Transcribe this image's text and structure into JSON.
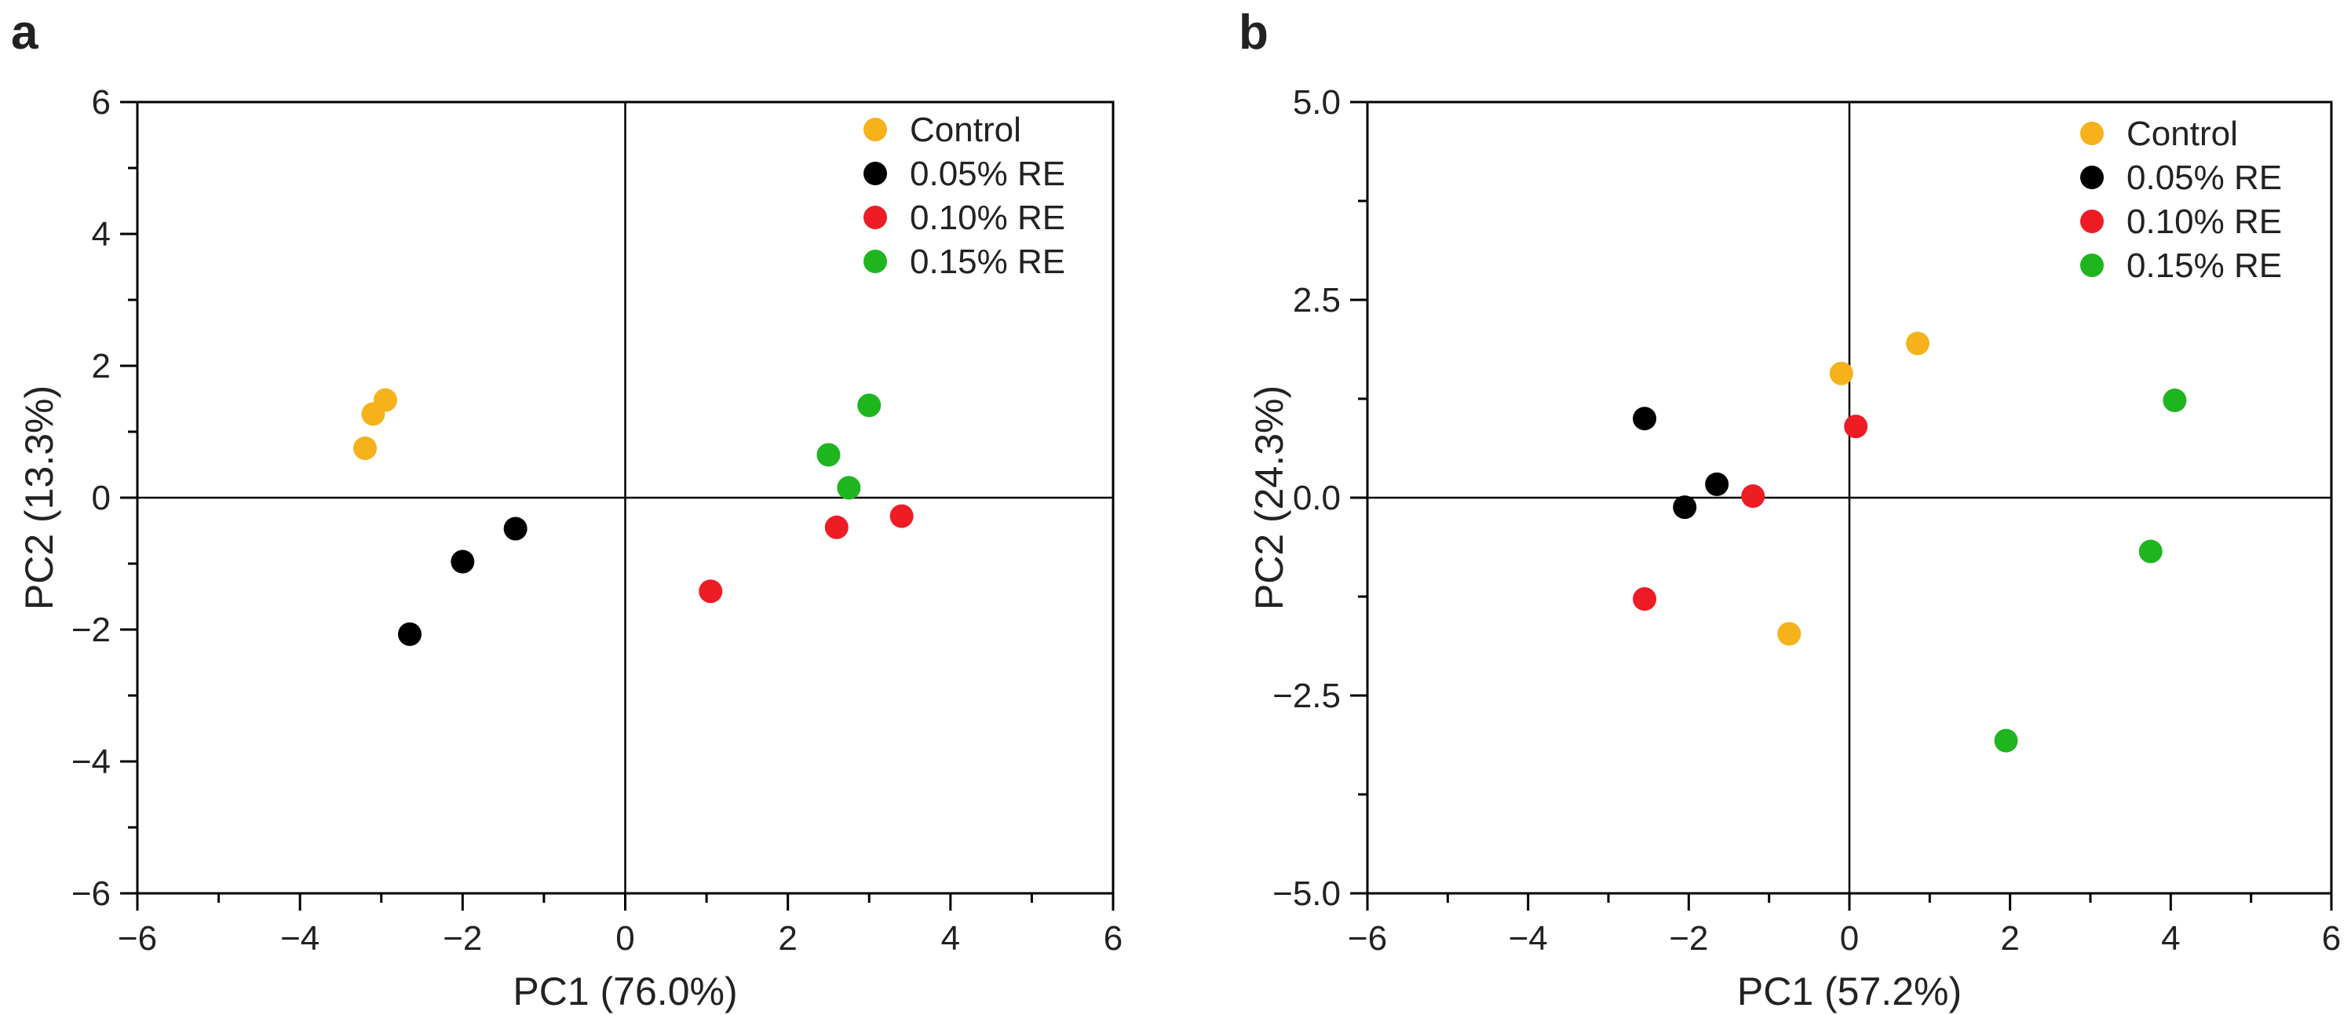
{
  "chart_data": [
    {
      "panel": "a",
      "type": "scatter",
      "xlabel": "PC1 (76.0%)",
      "ylabel": "PC2 (13.3%)",
      "xlim": [
        -6,
        6
      ],
      "ylim": [
        -6,
        6
      ],
      "xticks": [
        -6,
        -4,
        -2,
        0,
        2,
        4,
        6
      ],
      "yticks": [
        -6,
        -4,
        -2,
        0,
        2,
        4,
        6
      ],
      "x_tick_labels": [
        "−6",
        "−4",
        "−2",
        "0",
        "2",
        "4",
        "6"
      ],
      "y_tick_labels": [
        "−6",
        "−4",
        "−2",
        "0",
        "2",
        "4",
        "6"
      ],
      "legend_position": "top-right",
      "series": [
        {
          "name": "Control",
          "color": "#F5B21B",
          "points": [
            [
              -3.2,
              0.75
            ],
            [
              -3.1,
              1.27
            ],
            [
              -2.95,
              1.48
            ]
          ]
        },
        {
          "name": "0.05% RE",
          "color": "#000000",
          "points": [
            [
              -2.65,
              -2.07
            ],
            [
              -2.0,
              -0.97
            ],
            [
              -1.35,
              -0.47
            ]
          ]
        },
        {
          "name": "0.10% RE",
          "color": "#EE1C24",
          "points": [
            [
              1.05,
              -1.42
            ],
            [
              2.6,
              -0.45
            ],
            [
              3.4,
              -0.28
            ]
          ]
        },
        {
          "name": "0.15% RE",
          "color": "#1FB51F",
          "points": [
            [
              2.5,
              0.65
            ],
            [
              2.75,
              0.15
            ],
            [
              3.0,
              1.4
            ]
          ]
        }
      ]
    },
    {
      "panel": "b",
      "type": "scatter",
      "xlabel": "PC1 (57.2%)",
      "ylabel": "PC2 (24.3%)",
      "xlim": [
        -6,
        6
      ],
      "ylim": [
        -5,
        5
      ],
      "xticks": [
        -6,
        -4,
        -2,
        0,
        2,
        4,
        6
      ],
      "yticks": [
        -5,
        -2.5,
        0,
        2.5,
        5
      ],
      "x_tick_labels": [
        "−6",
        "−4",
        "−2",
        "0",
        "2",
        "4",
        "6"
      ],
      "y_tick_labels": [
        "−5.0",
        "−2.5",
        "0.0",
        "2.5",
        "5.0"
      ],
      "legend_position": "top-right",
      "series": [
        {
          "name": "Control",
          "color": "#F5B21B",
          "points": [
            [
              -0.1,
              1.57
            ],
            [
              0.85,
              1.95
            ],
            [
              -0.75,
              -1.72
            ]
          ]
        },
        {
          "name": "0.05% RE",
          "color": "#000000",
          "points": [
            [
              -2.55,
              1.0
            ],
            [
              -1.65,
              0.17
            ],
            [
              -2.05,
              -0.12
            ]
          ]
        },
        {
          "name": "0.10% RE",
          "color": "#EE1C24",
          "points": [
            [
              0.08,
              0.9
            ],
            [
              -1.2,
              0.02
            ],
            [
              -2.55,
              -1.28
            ]
          ]
        },
        {
          "name": "0.15% RE",
          "color": "#1FB51F",
          "points": [
            [
              4.05,
              1.23
            ],
            [
              3.75,
              -0.68
            ],
            [
              1.95,
              -3.07
            ]
          ]
        }
      ]
    }
  ]
}
